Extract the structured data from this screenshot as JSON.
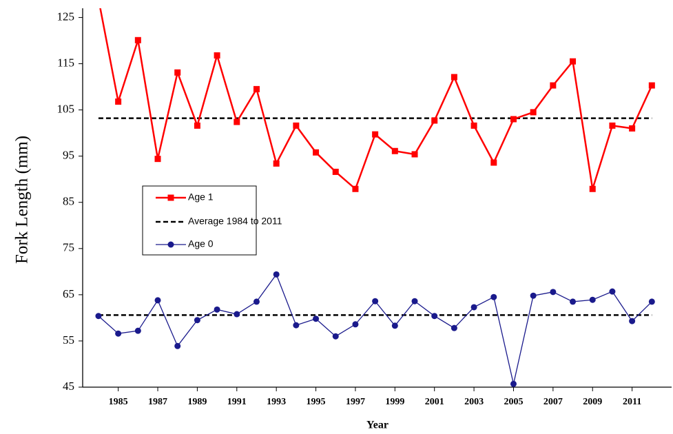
{
  "chart_data": {
    "type": "line",
    "x_label": "Year",
    "y_label": "Fork Length (mm)",
    "x": [
      1984,
      1985,
      1986,
      1987,
      1988,
      1989,
      1990,
      1991,
      1992,
      1993,
      1994,
      1995,
      1996,
      1997,
      1998,
      1999,
      2000,
      2001,
      2002,
      2003,
      2004,
      2005,
      2006,
      2007,
      2008,
      2009,
      2010,
      2011,
      2012
    ],
    "series": [
      {
        "name": "Age 1",
        "color": "#ff0000",
        "marker": "square",
        "values": [
          129,
          106.8,
          120.1,
          94.4,
          113.1,
          101.6,
          116.8,
          102.4,
          109.5,
          93.4,
          101.6,
          95.8,
          91.6,
          87.9,
          99.7,
          96.1,
          95.4,
          102.7,
          112.1,
          101.6,
          93.6,
          103.0,
          104.5,
          110.3,
          115.5,
          87.9,
          101.6,
          101.0,
          110.3
        ]
      },
      {
        "name": "Age 0",
        "color": "#1a1a8c",
        "marker": "circle",
        "values": [
          60.4,
          56.6,
          57.2,
          63.8,
          53.9,
          59.5,
          61.8,
          60.8,
          63.5,
          69.4,
          58.4,
          59.8,
          56.0,
          58.6,
          63.6,
          58.3,
          63.6,
          60.4,
          57.8,
          62.3,
          64.5,
          45.7,
          64.8,
          65.6,
          63.5,
          63.9,
          65.7,
          59.3,
          63.5
        ]
      }
    ],
    "averages": {
      "name": "Average 1984 to 2011",
      "color": "#000000",
      "values": [
        103.2,
        60.6
      ],
      "x_range": [
        1984,
        2012
      ]
    },
    "xlim": [
      1983.2,
      2013
    ],
    "xticks": [
      1985,
      1987,
      1989,
      1991,
      1993,
      1995,
      1997,
      1999,
      2001,
      2003,
      2005,
      2007,
      2009,
      2011
    ],
    "ylim": [
      45,
      127
    ],
    "yticks": [
      45,
      55,
      65,
      75,
      85,
      95,
      105,
      115,
      125
    ],
    "grid": false
  }
}
